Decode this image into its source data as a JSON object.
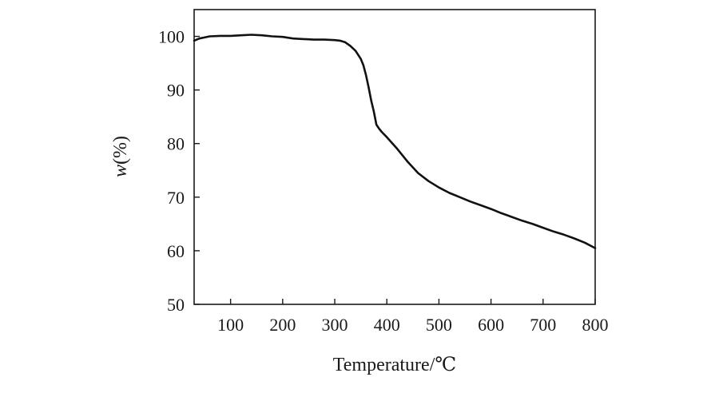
{
  "chart_data": {
    "type": "line",
    "title": "",
    "xlabel": "Temperature/℃",
    "ylabel_main": "w",
    "ylabel_unit": "(%)",
    "xlim": [
      30,
      800
    ],
    "ylim": [
      50,
      105
    ],
    "x_ticks": [
      100,
      200,
      300,
      400,
      500,
      600,
      700,
      800
    ],
    "y_ticks": [
      50,
      60,
      70,
      80,
      90,
      100
    ],
    "grid": false,
    "series": [
      {
        "color": "#111111",
        "x": [
          30,
          40,
          50,
          60,
          80,
          100,
          120,
          140,
          160,
          180,
          200,
          220,
          240,
          260,
          280,
          300,
          310,
          320,
          330,
          340,
          350,
          355,
          360,
          365,
          370,
          375,
          380,
          385,
          390,
          400,
          420,
          440,
          460,
          480,
          500,
          520,
          540,
          560,
          580,
          600,
          620,
          640,
          660,
          680,
          700,
          720,
          740,
          760,
          780,
          800
        ],
        "y": [
          99.2,
          99.6,
          99.8,
          100.0,
          100.1,
          100.1,
          100.2,
          100.3,
          100.2,
          100.0,
          99.9,
          99.6,
          99.5,
          99.4,
          99.4,
          99.3,
          99.2,
          98.9,
          98.2,
          97.3,
          95.8,
          94.6,
          92.8,
          90.5,
          88.0,
          86.0,
          83.5,
          82.8,
          82.2,
          81.2,
          79.0,
          76.6,
          74.5,
          73.0,
          71.8,
          70.8,
          70.0,
          69.2,
          68.5,
          67.8,
          67.0,
          66.3,
          65.6,
          65.0,
          64.3,
          63.6,
          63.0,
          62.3,
          61.5,
          60.5
        ]
      }
    ]
  }
}
